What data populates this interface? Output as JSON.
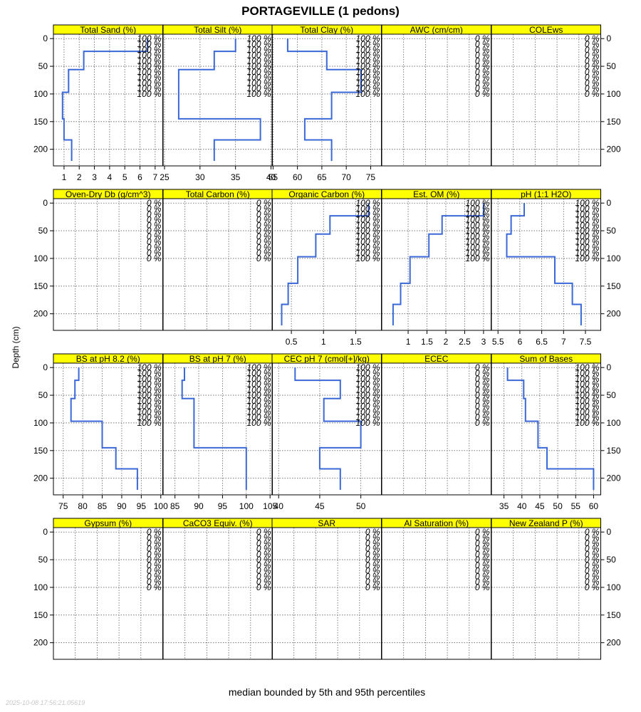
{
  "title": "PORTAGEVILLE (1 pedons)",
  "y_axis_label": "Depth (cm)",
  "footer": "median bounded by 5th and 95th percentiles",
  "timestamp": "2025-10-08 17:56:21.05619",
  "colors": {
    "strip": "#ffff00",
    "line": "#3a68d8",
    "grid": "#606060",
    "frame": "#000000"
  },
  "chart_data": {
    "type": "line",
    "layout": "4 rows x 5 columns, depth on shared reversed y axis",
    "y_axis": {
      "label": "Depth (cm)",
      "range": [
        230,
        -8
      ],
      "ticks": [
        0,
        50,
        100,
        150,
        200
      ]
    },
    "percent_labels_at_depths": [
      0,
      10,
      20,
      30,
      40,
      50,
      60,
      70,
      80,
      90,
      100
    ],
    "panels": [
      {
        "label": "Total Sand (%)",
        "xlim": [
          0.3,
          7.5
        ],
        "xticks": [
          1,
          2,
          3,
          4,
          5,
          6,
          7
        ],
        "percent_label": "100 %",
        "steps": [
          {
            "top": 0,
            "bottom": 23,
            "value": 6.5
          },
          {
            "top": 23,
            "bottom": 56,
            "value": 2.3
          },
          {
            "top": 56,
            "bottom": 97,
            "value": 1.3
          },
          {
            "top": 97,
            "bottom": 145,
            "value": 0.9
          },
          {
            "top": 145,
            "bottom": 183,
            "value": 1.0
          },
          {
            "top": 183,
            "bottom": 221,
            "value": 1.5
          }
        ]
      },
      {
        "label": "Total Silt (%)",
        "xlim": [
          24.8,
          40.2
        ],
        "xticks": [
          25,
          30,
          35,
          40
        ],
        "percent_label": "100 %",
        "steps": [
          {
            "top": 0,
            "bottom": 23,
            "value": 35
          },
          {
            "top": 23,
            "bottom": 56,
            "value": 32
          },
          {
            "top": 56,
            "bottom": 97,
            "value": 27
          },
          {
            "top": 97,
            "bottom": 145,
            "value": 27
          },
          {
            "top": 145,
            "bottom": 183,
            "value": 38.5
          },
          {
            "top": 183,
            "bottom": 221,
            "value": 32
          }
        ]
      },
      {
        "label": "Total Clay (%)",
        "xlim": [
          54.8,
          77.2
        ],
        "xticks": [
          55,
          60,
          65,
          70,
          75
        ],
        "percent_label": "100 %",
        "steps": [
          {
            "top": 0,
            "bottom": 23,
            "value": 58
          },
          {
            "top": 23,
            "bottom": 56,
            "value": 66
          },
          {
            "top": 56,
            "bottom": 97,
            "value": 73
          },
          {
            "top": 97,
            "bottom": 145,
            "value": 67
          },
          {
            "top": 145,
            "bottom": 183,
            "value": 61.5
          },
          {
            "top": 183,
            "bottom": 221,
            "value": 67
          }
        ]
      },
      {
        "label": "AWC (cm/cm)",
        "xlim": [
          0,
          1
        ],
        "xticks": [],
        "percent_label": "0 %",
        "steps": []
      },
      {
        "label": "COLEws",
        "xlim": [
          0,
          1
        ],
        "xticks": [],
        "percent_label": "0 %",
        "steps": []
      },
      {
        "label": "Oven-Dry Db (g/cm^3)",
        "xlim": [
          0,
          1
        ],
        "xticks": [],
        "percent_label": "0 %",
        "steps": []
      },
      {
        "label": "Total Carbon (%)",
        "xlim": [
          0,
          1
        ],
        "xticks": [],
        "percent_label": "0 %",
        "steps": []
      },
      {
        "label": "Organic Carbon (%)",
        "xlim": [
          0.2,
          1.9
        ],
        "xticks": [
          0.5,
          1.0,
          1.5
        ],
        "percent_label": "100 %",
        "steps": [
          {
            "top": 0,
            "bottom": 23,
            "value": 1.7
          },
          {
            "top": 23,
            "bottom": 56,
            "value": 1.1
          },
          {
            "top": 56,
            "bottom": 97,
            "value": 0.88
          },
          {
            "top": 97,
            "bottom": 145,
            "value": 0.6
          },
          {
            "top": 145,
            "bottom": 183,
            "value": 0.45
          },
          {
            "top": 183,
            "bottom": 221,
            "value": 0.35
          }
        ]
      },
      {
        "label": "Est. OM (%)",
        "xlim": [
          0.3,
          3.2
        ],
        "xticks": [
          1.0,
          1.5,
          2.0,
          2.5,
          3.0
        ],
        "percent_label": "100 %",
        "steps": [
          {
            "top": 0,
            "bottom": 23,
            "value": 3.0
          },
          {
            "top": 23,
            "bottom": 56,
            "value": 1.9
          },
          {
            "top": 56,
            "bottom": 97,
            "value": 1.55
          },
          {
            "top": 97,
            "bottom": 145,
            "value": 1.05
          },
          {
            "top": 145,
            "bottom": 183,
            "value": 0.8
          },
          {
            "top": 183,
            "bottom": 221,
            "value": 0.6
          }
        ]
      },
      {
        "label": "pH (1:1 H2O)",
        "xlim": [
          5.35,
          7.85
        ],
        "xticks": [
          5.5,
          6.0,
          6.5,
          7.0,
          7.5
        ],
        "percent_label": "100 %",
        "steps": [
          {
            "top": 0,
            "bottom": 23,
            "value": 6.1
          },
          {
            "top": 23,
            "bottom": 56,
            "value": 5.8
          },
          {
            "top": 56,
            "bottom": 97,
            "value": 5.7
          },
          {
            "top": 97,
            "bottom": 145,
            "value": 6.8
          },
          {
            "top": 145,
            "bottom": 183,
            "value": 7.2
          },
          {
            "top": 183,
            "bottom": 221,
            "value": 7.4
          }
        ]
      },
      {
        "label": "BS at pH 8.2 (%)",
        "xlim": [
          72.5,
          100.5
        ],
        "xticks": [
          75,
          80,
          85,
          90,
          95,
          100
        ],
        "percent_label": "100 %",
        "steps": [
          {
            "top": 0,
            "bottom": 23,
            "value": 79
          },
          {
            "top": 23,
            "bottom": 56,
            "value": 78
          },
          {
            "top": 56,
            "bottom": 97,
            "value": 77
          },
          {
            "top": 97,
            "bottom": 145,
            "value": 85
          },
          {
            "top": 145,
            "bottom": 183,
            "value": 88.5
          },
          {
            "top": 183,
            "bottom": 221,
            "value": 94
          }
        ]
      },
      {
        "label": "BS at pH 7 (%)",
        "xlim": [
          82.5,
          105.5
        ],
        "xticks": [
          85,
          90,
          95,
          100,
          105
        ],
        "percent_label": "100 %",
        "steps": [
          {
            "top": 0,
            "bottom": 23,
            "value": 87
          },
          {
            "top": 23,
            "bottom": 56,
            "value": 86.5
          },
          {
            "top": 56,
            "bottom": 97,
            "value": 89
          },
          {
            "top": 97,
            "bottom": 145,
            "value": 89
          },
          {
            "top": 145,
            "bottom": 183,
            "value": 100
          },
          {
            "top": 183,
            "bottom": 221,
            "value": 100
          }
        ]
      },
      {
        "label": "CEC pH 7 (cmol[+]/kg)",
        "xlim": [
          39.2,
          52.5
        ],
        "xticks": [
          40,
          45,
          50
        ],
        "percent_label": "100 %",
        "steps": [
          {
            "top": 0,
            "bottom": 23,
            "value": 42
          },
          {
            "top": 23,
            "bottom": 56,
            "value": 47.5
          },
          {
            "top": 56,
            "bottom": 97,
            "value": 45.5
          },
          {
            "top": 97,
            "bottom": 145,
            "value": 50
          },
          {
            "top": 145,
            "bottom": 183,
            "value": 45
          },
          {
            "top": 183,
            "bottom": 221,
            "value": 47.5
          }
        ]
      },
      {
        "label": "ECEC",
        "xlim": [
          0,
          1
        ],
        "xticks": [],
        "percent_label": "0 %",
        "steps": []
      },
      {
        "label": "Sum of Bases",
        "xlim": [
          31.5,
          62
        ],
        "xticks": [
          35,
          40,
          45,
          50,
          55,
          60
        ],
        "percent_label": "100 %",
        "steps": [
          {
            "top": 0,
            "bottom": 23,
            "value": 36
          },
          {
            "top": 23,
            "bottom": 56,
            "value": 40.5
          },
          {
            "top": 56,
            "bottom": 97,
            "value": 41
          },
          {
            "top": 97,
            "bottom": 145,
            "value": 44.5
          },
          {
            "top": 145,
            "bottom": 183,
            "value": 47
          },
          {
            "top": 183,
            "bottom": 221,
            "value": 60
          }
        ]
      },
      {
        "label": "Gypsum (%)",
        "xlim": [
          0,
          1
        ],
        "xticks": [],
        "percent_label": "0 %",
        "steps": []
      },
      {
        "label": "CaCO3 Equiv. (%)",
        "xlim": [
          0,
          1
        ],
        "xticks": [],
        "percent_label": "0 %",
        "steps": []
      },
      {
        "label": "SAR",
        "xlim": [
          0,
          1
        ],
        "xticks": [],
        "percent_label": "0 %",
        "steps": []
      },
      {
        "label": "Al Saturation (%)",
        "xlim": [
          0,
          1
        ],
        "xticks": [],
        "percent_label": "0 %",
        "steps": []
      },
      {
        "label": "New Zealand P (%)",
        "xlim": [
          0,
          1
        ],
        "xticks": [],
        "percent_label": "0 %",
        "steps": []
      }
    ]
  }
}
